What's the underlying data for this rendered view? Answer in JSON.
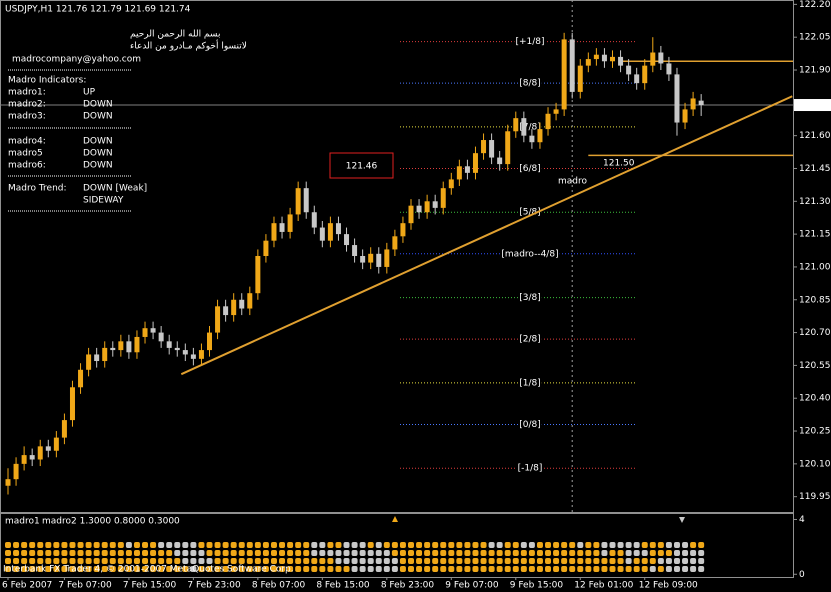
{
  "chart_data": {
    "type": "candlestick",
    "title": "USDJPY,H1  121.76 121.79 121.69 121.74",
    "bull_color": "#f0a818",
    "bear_color": "#c8c8c8",
    "categories": [
      "6 Feb 2007",
      null,
      null,
      null,
      null,
      null,
      null,
      "7 Feb 07:00",
      null,
      null,
      null,
      null,
      null,
      null,
      null,
      "7 Feb 15:00",
      null,
      null,
      null,
      null,
      null,
      null,
      null,
      "7 Feb 23:00",
      null,
      null,
      null,
      null,
      null,
      null,
      null,
      "8 Feb 07:00",
      null,
      null,
      null,
      null,
      null,
      null,
      null,
      "8 Feb 15:00",
      null,
      null,
      null,
      null,
      null,
      null,
      null,
      "8 Feb 23:00",
      null,
      null,
      null,
      null,
      null,
      null,
      null,
      "9 Feb 07:00",
      null,
      null,
      null,
      null,
      null,
      null,
      null,
      "9 Feb 15:00",
      null,
      null,
      null,
      null,
      null,
      null,
      null,
      "12 Feb 01:00",
      null,
      null,
      null,
      null,
      null,
      null,
      null,
      "12 Feb 09:00",
      null,
      null,
      null,
      null,
      null,
      null,
      null
    ],
    "candles": [
      [
        120.0,
        120.08,
        119.96,
        120.03
      ],
      [
        120.03,
        120.13,
        120.0,
        120.1
      ],
      [
        120.1,
        120.18,
        120.07,
        120.14
      ],
      [
        120.14,
        120.17,
        120.09,
        120.12
      ],
      [
        120.12,
        120.21,
        120.09,
        120.18
      ],
      [
        120.18,
        120.21,
        120.13,
        120.16
      ],
      [
        120.16,
        120.25,
        120.13,
        120.22
      ],
      [
        120.22,
        120.33,
        120.19,
        120.3
      ],
      [
        120.3,
        120.48,
        120.27,
        120.45
      ],
      [
        120.45,
        120.56,
        120.42,
        120.53
      ],
      [
        120.53,
        120.63,
        120.5,
        120.6
      ],
      [
        120.6,
        120.63,
        120.54,
        120.57
      ],
      [
        120.57,
        120.66,
        120.54,
        120.63
      ],
      [
        120.63,
        120.66,
        120.59,
        120.62
      ],
      [
        120.62,
        120.69,
        120.59,
        120.66
      ],
      [
        120.66,
        120.69,
        120.58,
        120.61
      ],
      [
        120.61,
        120.71,
        120.58,
        120.68
      ],
      [
        120.68,
        120.75,
        120.65,
        120.72
      ],
      [
        120.72,
        120.75,
        120.67,
        120.7
      ],
      [
        120.7,
        120.73,
        120.63,
        120.66
      ],
      [
        120.66,
        120.69,
        120.6,
        120.63
      ],
      [
        120.63,
        120.66,
        120.59,
        120.62
      ],
      [
        120.62,
        120.65,
        120.57,
        120.6
      ],
      [
        120.6,
        120.63,
        120.55,
        120.58
      ],
      [
        120.58,
        120.65,
        120.55,
        120.62
      ],
      [
        120.62,
        120.73,
        120.59,
        120.7
      ],
      [
        120.7,
        120.85,
        120.67,
        120.82
      ],
      [
        120.82,
        120.85,
        120.75,
        120.78
      ],
      [
        120.78,
        120.88,
        120.75,
        120.85
      ],
      [
        120.85,
        120.88,
        120.78,
        120.81
      ],
      [
        120.81,
        120.91,
        120.78,
        120.88
      ],
      [
        120.88,
        121.08,
        120.85,
        121.05
      ],
      [
        121.05,
        121.15,
        121.02,
        121.12
      ],
      [
        121.12,
        121.23,
        121.09,
        121.2
      ],
      [
        121.2,
        121.23,
        121.13,
        121.16
      ],
      [
        121.16,
        121.27,
        121.13,
        121.24
      ],
      [
        121.24,
        121.39,
        121.21,
        121.36
      ],
      [
        121.36,
        121.39,
        121.22,
        121.25
      ],
      [
        121.25,
        121.28,
        121.15,
        121.18
      ],
      [
        121.18,
        121.21,
        121.09,
        121.12
      ],
      [
        121.12,
        121.23,
        121.09,
        121.2
      ],
      [
        121.2,
        121.23,
        121.12,
        121.15
      ],
      [
        121.15,
        121.18,
        121.07,
        121.1
      ],
      [
        121.1,
        121.13,
        121.02,
        121.05
      ],
      [
        121.05,
        121.08,
        120.99,
        121.02
      ],
      [
        121.02,
        121.09,
        120.99,
        121.06
      ],
      [
        121.06,
        121.09,
        120.97,
        121.0
      ],
      [
        121.0,
        121.11,
        120.97,
        121.08
      ],
      [
        121.08,
        121.17,
        121.05,
        121.14
      ],
      [
        121.14,
        121.23,
        121.11,
        121.2
      ],
      [
        121.2,
        121.31,
        121.17,
        121.28
      ],
      [
        121.28,
        121.31,
        121.22,
        121.25
      ],
      [
        121.25,
        121.33,
        121.22,
        121.3
      ],
      [
        121.3,
        121.33,
        121.24,
        121.27
      ],
      [
        121.27,
        121.39,
        121.24,
        121.36
      ],
      [
        121.36,
        121.43,
        121.33,
        121.4
      ],
      [
        121.4,
        121.49,
        121.37,
        121.46
      ],
      [
        121.46,
        121.49,
        121.4,
        121.43
      ],
      [
        121.43,
        121.55,
        121.4,
        121.52
      ],
      [
        121.52,
        121.61,
        121.49,
        121.58
      ],
      [
        121.58,
        121.61,
        121.47,
        121.5
      ],
      [
        121.5,
        121.53,
        121.44,
        121.47
      ],
      [
        121.47,
        121.65,
        121.44,
        121.62
      ],
      [
        121.62,
        121.71,
        121.59,
        121.68
      ],
      [
        121.68,
        121.71,
        121.57,
        121.6
      ],
      [
        121.6,
        121.63,
        121.54,
        121.57
      ],
      [
        121.57,
        121.66,
        121.54,
        121.63
      ],
      [
        121.63,
        121.73,
        121.6,
        121.7
      ],
      [
        121.7,
        121.75,
        121.67,
        121.72
      ],
      [
        121.72,
        122.07,
        121.69,
        122.04
      ],
      [
        122.04,
        122.07,
        121.77,
        121.8
      ],
      [
        121.8,
        121.95,
        121.77,
        121.92
      ],
      [
        121.92,
        121.98,
        121.89,
        121.95
      ],
      [
        121.95,
        122.0,
        121.92,
        121.97
      ],
      [
        121.97,
        122.0,
        121.91,
        121.94
      ],
      [
        121.94,
        121.99,
        121.91,
        121.96
      ],
      [
        121.96,
        121.99,
        121.89,
        121.92
      ],
      [
        121.92,
        121.95,
        121.85,
        121.88
      ],
      [
        121.88,
        121.91,
        121.81,
        121.84
      ],
      [
        121.84,
        121.95,
        121.81,
        121.92
      ],
      [
        121.92,
        122.05,
        121.89,
        121.98
      ],
      [
        121.98,
        122.01,
        121.9,
        121.93
      ],
      [
        121.93,
        121.96,
        121.85,
        121.88
      ],
      [
        121.88,
        121.91,
        121.6,
        121.66
      ],
      [
        121.66,
        121.75,
        121.63,
        121.72
      ],
      [
        121.72,
        121.8,
        121.69,
        121.77
      ],
      [
        121.76,
        121.79,
        121.69,
        121.74
      ]
    ],
    "ylim": [
      119.88,
      122.22
    ],
    "yticks": [
      {
        "value": 122.2,
        "label": "122.20"
      },
      122.05,
      {
        "value": 121.9,
        "label": "121.90"
      },
      {
        "value": 121.6,
        "label": "121.60"
      },
      121.45,
      {
        "value": 121.3,
        "label": "121.30"
      },
      121.15,
      {
        "value": 121.0,
        "label": "121.00"
      },
      120.85,
      {
        "value": 120.7,
        "label": "120.70"
      },
      120.55,
      {
        "value": 120.4,
        "label": "120.40"
      },
      120.25,
      {
        "value": 120.1,
        "label": "120.10"
      },
      119.95
    ],
    "current_price": 121.74,
    "murrey_levels": [
      {
        "label": "[+1/8]",
        "value": 122.03,
        "color": "#e03c3c"
      },
      {
        "label": "[8/8]",
        "value": 121.84,
        "color": "#4a78ff"
      },
      {
        "label": "[7/8]",
        "value": 121.64,
        "color": "#e8e040"
      },
      {
        "label": "[6/8]",
        "value": 121.45,
        "color": "#e03c3c"
      },
      {
        "label": "[5/8]",
        "value": 121.25,
        "color": "#3cc03c"
      },
      {
        "label": "[madro--4/8]",
        "value": 121.06,
        "color": "#3050ff"
      },
      {
        "label": "[3/8]",
        "value": 120.86,
        "color": "#3cc03c"
      },
      {
        "label": "[2/8]",
        "value": 120.67,
        "color": "#e03c3c"
      },
      {
        "label": "[1/8]",
        "value": 120.47,
        "color": "#e8e040"
      },
      {
        "label": "[0/8]",
        "value": 120.28,
        "color": "#4a78ff"
      },
      {
        "label": "[-1/8]",
        "value": 120.08,
        "color": "#e03c3c"
      }
    ],
    "trendline": {
      "x": [
        21.5,
        97.3
      ],
      "y": [
        120.51,
        121.78
      ],
      "color": "#e0a030"
    },
    "hlines": [
      {
        "value": 121.94,
        "start": 76,
        "color": "#e0a030"
      },
      {
        "value": 121.51,
        "start": 72,
        "color": "#e0a030"
      }
    ],
    "vline": 70,
    "price_box": "121.46",
    "level_note": "121.50",
    "madro_note": "madro",
    "indicator": {
      "title": "madro1",
      "params": "madro2 1.3000 0.8000 0.3000",
      "ylim": [
        -0.2,
        4.4
      ],
      "yticks": [
        0,
        4
      ]
    },
    "watermark": "Interbank FX Trader 4, © 2001-2007 MetaQuotes Software Corp."
  },
  "info": {
    "arabic": [
      "بسم الله الرحمن الرحيم",
      "لاتنسوا أخوكم مـادرو من الدعاء"
    ],
    "email": "madrocompany@yahoo.com",
    "heading": "Madro Indicators:",
    "rows": [
      {
        "label": "madro1:",
        "value": "UP",
        "color": "#00c000"
      },
      {
        "label": "madro2:",
        "value": "DOWN",
        "color": "#e02020"
      },
      {
        "label": "madro3:",
        "value": "DOWN",
        "color": "#e02020"
      },
      {
        "label": "madro4:",
        "value": "DOWN",
        "color": "#e02020"
      },
      {
        "label": "madro5",
        "value": "DOWN",
        "color": "#e02020"
      },
      {
        "label": "madro6:",
        "value": "DOWN",
        "color": "#e02020"
      }
    ],
    "trend_label": "Madro Trend:",
    "trend": [
      {
        "text": "DOWN [Weak]",
        "color": "#e02020"
      },
      {
        "text": "SIDEWAY",
        "color": "#a0a0a0"
      }
    ]
  }
}
